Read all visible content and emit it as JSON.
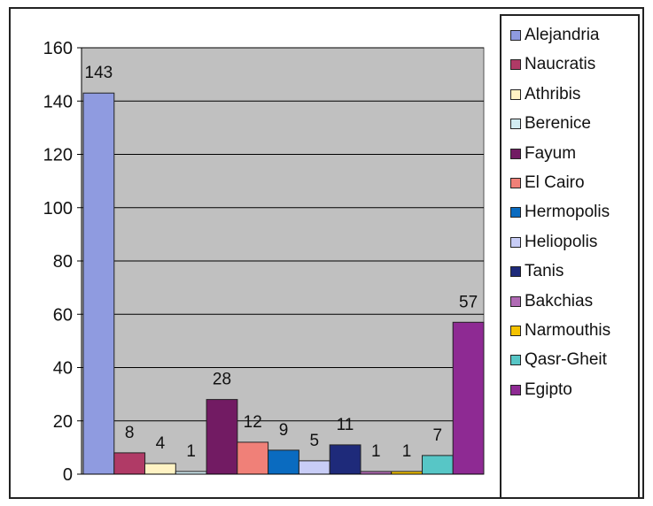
{
  "chart_data": {
    "type": "bar",
    "categories": [
      "Alejandria",
      "Naucratis",
      "Athribis",
      "Berenice",
      "Fayum",
      "El Cairo",
      "Hermopolis",
      "Heliopolis",
      "Tanis",
      "Bakchias",
      "Narmouthis",
      "Qasr-Gheit",
      "Egipto"
    ],
    "values": [
      143,
      8,
      4,
      1,
      28,
      12,
      9,
      5,
      11,
      1,
      1,
      7,
      57
    ],
    "ylim": [
      0,
      160
    ],
    "yticks": [
      0,
      20,
      40,
      60,
      80,
      100,
      120,
      140,
      160
    ],
    "grid": true,
    "legend": "right",
    "colors": [
      "#8f9be0",
      "#b03a66",
      "#fff3c4",
      "#d2ecf2",
      "#721b63",
      "#f08078",
      "#0a6bc0",
      "#c8cdf6",
      "#1e2a7a",
      "#b06ab4",
      "#f4c200",
      "#57c6c6",
      "#8e2a93"
    ]
  }
}
